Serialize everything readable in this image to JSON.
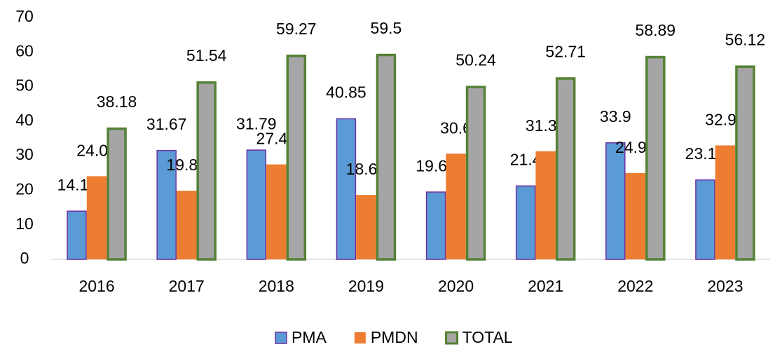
{
  "chart_data": {
    "type": "bar",
    "categories": [
      "2016",
      "2017",
      "2018",
      "2019",
      "2020",
      "2021",
      "2022",
      "2023"
    ],
    "series": [
      {
        "name": "PMA",
        "color": "#5b9bd5",
        "border": "#7030a0",
        "values": [
          14.11,
          31.67,
          31.79,
          40.85,
          19.64,
          21.4,
          33.9,
          23.14
        ]
      },
      {
        "name": "PMDN",
        "color": "#ed7d31",
        "values": [
          24.07,
          19.87,
          27.48,
          18.65,
          30.6,
          31.31,
          24.99,
          32.98
        ]
      },
      {
        "name": "TOTAL",
        "color": "#a5a5a5",
        "border": "#548235",
        "values": [
          38.18,
          51.54,
          59.27,
          59.5,
          50.24,
          52.71,
          58.89,
          56.12
        ]
      }
    ],
    "ylim": [
      0,
      70
    ],
    "yticks": [
      0,
      10,
      20,
      30,
      40,
      50,
      60,
      70
    ],
    "grid": false,
    "legend": "bottom"
  }
}
